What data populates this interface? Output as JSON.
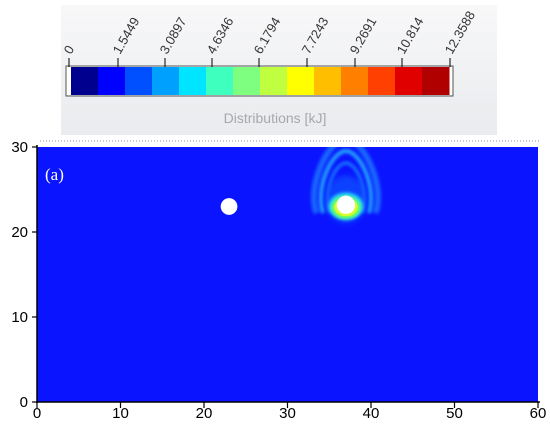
{
  "chart_data": {
    "type": "heatmap",
    "panel_label": "(a)",
    "colorbar": {
      "title": "Distributions [kJ]",
      "tick_labels": [
        "0",
        "1.5449",
        "3.0897",
        "4.6346",
        "6.1794",
        "7.7243",
        "9.2691",
        "10.814",
        "12.3588"
      ],
      "range": [
        0,
        12.3588
      ],
      "colors": [
        "#00008f",
        "#0000ff",
        "#0050ff",
        "#00a0ff",
        "#00e5ff",
        "#3fffbf",
        "#7fff7f",
        "#bfff3f",
        "#ffff00",
        "#ffbf00",
        "#ff7f00",
        "#ff4000",
        "#e00000",
        "#b00000"
      ],
      "legend_placement": "top"
    },
    "xlim": [
      0,
      60
    ],
    "ylim": [
      0,
      30
    ],
    "x_ticks": [
      "0",
      "10",
      "20",
      "30",
      "40",
      "50",
      "60"
    ],
    "y_ticks": [
      "0",
      "10",
      "20",
      "30"
    ],
    "background_value": 1.2,
    "background_color": "#0b14ff",
    "particles": [
      {
        "x": 23,
        "y": 23,
        "r": 1.0,
        "color": "#ffffff"
      },
      {
        "x": 37,
        "y": 23.2,
        "r": 1.1,
        "color": "#ffffff"
      }
    ],
    "hotspot": {
      "x": 37,
      "y": 23.2,
      "peak_value": 12.3588,
      "plume_top_y": 30,
      "colors": [
        "#2bd9ff",
        "#3fffa0",
        "#7dff4a",
        "#d8ff2a"
      ]
    },
    "grid": false
  }
}
